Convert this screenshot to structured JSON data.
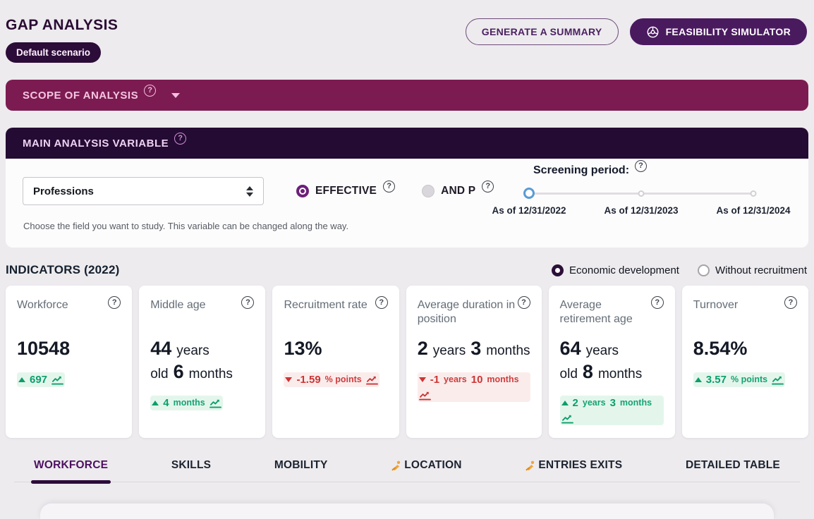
{
  "header": {
    "title": "GAP ANALYSIS",
    "badge": "Default scenario",
    "generate_button": "GENERATE A SUMMARY",
    "simulator_button": "FEASIBILITY SIMULATOR"
  },
  "scope": {
    "label": "SCOPE OF ANALYSIS"
  },
  "main_variable": {
    "header": "MAIN ANALYSIS VARIABLE",
    "select_value": "Professions",
    "radios": [
      {
        "label": "EFFECTIVE",
        "selected": true
      },
      {
        "label": "AND P",
        "selected": false
      }
    ],
    "screening_label": "Screening period:",
    "screening_stops": [
      "As of 12/31/2022",
      "As of 12/31/2023",
      "As of 12/31/2024"
    ],
    "helper": "Choose the field you want to study. This variable can be changed along the way."
  },
  "indicators": {
    "title": "INDICATORS (2022)",
    "mode_radios": [
      {
        "label": "Economic development",
        "selected": true
      },
      {
        "label": "Without recruitment",
        "selected": false
      }
    ],
    "cards": [
      {
        "title": "Workforce",
        "value_parts": [
          {
            "t": "10548",
            "s": "lg"
          }
        ],
        "delta": {
          "dir": "up",
          "color": "green",
          "parts": [
            {
              "t": "697",
              "k": "num"
            }
          ]
        }
      },
      {
        "title": "Middle age",
        "value_parts": [
          {
            "t": "44",
            "s": "lg"
          },
          {
            "t": "years old",
            "s": "sm"
          },
          {
            "t": "6",
            "s": "lg"
          },
          {
            "t": "months",
            "s": "sm"
          }
        ],
        "delta": {
          "dir": "up",
          "color": "green",
          "parts": [
            {
              "t": "4",
              "k": "num"
            },
            {
              "t": "months",
              "k": "unit"
            }
          ]
        }
      },
      {
        "title": "Recruitment rate",
        "value_parts": [
          {
            "t": "13%",
            "s": "lg"
          }
        ],
        "delta": {
          "dir": "down",
          "color": "red",
          "parts": [
            {
              "t": "-1.59",
              "k": "num"
            },
            {
              "t": "% points",
              "k": "unit"
            }
          ]
        }
      },
      {
        "title": "Average duration in position",
        "value_parts": [
          {
            "t": "2",
            "s": "lg"
          },
          {
            "t": "years",
            "s": "sm"
          },
          {
            "t": "3",
            "s": "lg"
          },
          {
            "t": "months",
            "s": "sm"
          }
        ],
        "delta": {
          "dir": "down",
          "color": "red",
          "parts": [
            {
              "t": "-1",
              "k": "num"
            },
            {
              "t": "years",
              "k": "unit"
            },
            {
              "t": "10",
              "k": "num"
            },
            {
              "t": "months",
              "k": "unit"
            }
          ]
        }
      },
      {
        "title": "Average retirement age",
        "value_parts": [
          {
            "t": "64",
            "s": "lg"
          },
          {
            "t": "years old",
            "s": "sm"
          },
          {
            "t": "8",
            "s": "lg"
          },
          {
            "t": "months",
            "s": "sm"
          }
        ],
        "delta": {
          "dir": "up",
          "color": "green",
          "parts": [
            {
              "t": "2",
              "k": "num"
            },
            {
              "t": "years",
              "k": "unit"
            },
            {
              "t": "3",
              "k": "num"
            },
            {
              "t": "months",
              "k": "unit"
            }
          ]
        }
      },
      {
        "title": "Turnover",
        "value_parts": [
          {
            "t": "8.54%",
            "s": "lg"
          }
        ],
        "delta": {
          "dir": "up",
          "color": "green",
          "parts": [
            {
              "t": "3.57",
              "k": "num"
            },
            {
              "t": "% points",
              "k": "unit"
            }
          ]
        }
      }
    ]
  },
  "tabs": [
    {
      "label": "WORKFORCE",
      "active": true,
      "icon": false
    },
    {
      "label": "SKILLS",
      "active": false,
      "icon": false
    },
    {
      "label": "MOBILITY",
      "active": false,
      "icon": false
    },
    {
      "label": "LOCATION",
      "active": false,
      "icon": true
    },
    {
      "label": "ENTRIES EXITS",
      "active": false,
      "icon": true
    },
    {
      "label": "DETAILED TABLE",
      "active": false,
      "icon": false
    }
  ],
  "icons": {
    "help": "?",
    "chevron_down": "chevron-down",
    "steering_wheel": "steering-wheel",
    "select_arrows": "up-down-arrows",
    "trend_up": "triangle-up",
    "trend_down": "triangle-down",
    "trend_chart": "line-chart",
    "construction": "worker-digging"
  },
  "colors": {
    "accent_purple": "#4a1a5f",
    "maroon": "#7c1b51",
    "dark_header": "#240b33",
    "green": "#0b9e6d",
    "red": "#cc3434",
    "orange": "#f0a43c",
    "slider_accent": "#5b9bd5",
    "tab_active": "#4d1061"
  }
}
